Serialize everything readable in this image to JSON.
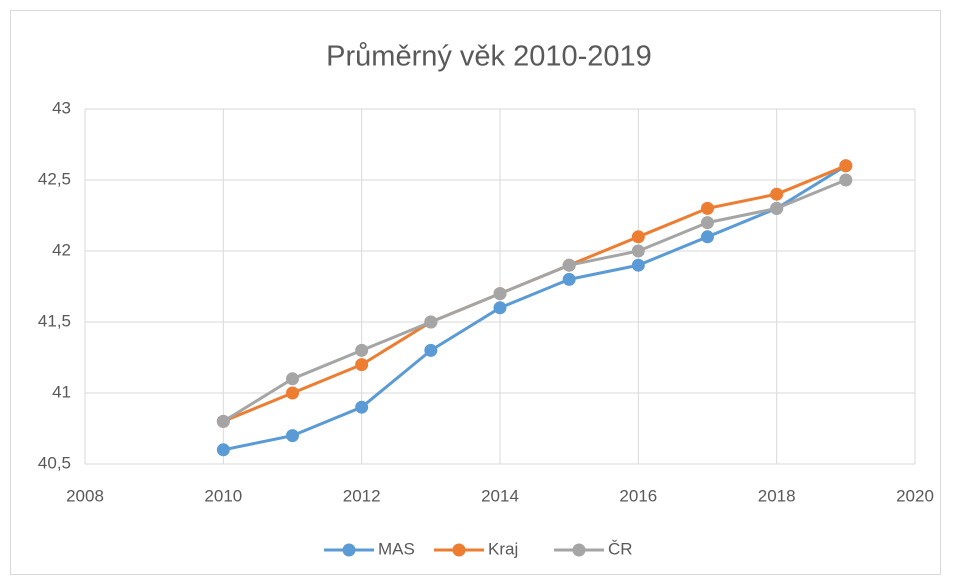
{
  "chart_data": {
    "type": "line",
    "title": "Průměrný věk 2010-2019",
    "x": [
      2010,
      2011,
      2012,
      2013,
      2014,
      2015,
      2016,
      2017,
      2018,
      2019
    ],
    "series": [
      {
        "name": "MAS",
        "color": "#5b9bd5",
        "values": [
          40.6,
          40.7,
          40.9,
          41.3,
          41.6,
          41.8,
          41.9,
          42.1,
          42.3,
          42.6
        ]
      },
      {
        "name": "Kraj",
        "color": "#ed7d31",
        "values": [
          40.8,
          41.0,
          41.2,
          41.5,
          41.7,
          41.9,
          42.1,
          42.3,
          42.4,
          42.6
        ]
      },
      {
        "name": "ČR",
        "color": "#a5a5a5",
        "values": [
          40.8,
          41.1,
          41.3,
          41.5,
          41.7,
          41.9,
          42.0,
          42.2,
          42.3,
          42.5
        ]
      }
    ],
    "xlim": [
      2008,
      2020
    ],
    "xticks": [
      2008,
      2010,
      2012,
      2014,
      2016,
      2018,
      2020
    ],
    "ylim": [
      40.5,
      43
    ],
    "yticks": [
      {
        "value": 40.5,
        "label": "40,5"
      },
      41,
      {
        "value": 41.5,
        "label": "41,5"
      },
      42,
      {
        "value": 42.5,
        "label": "42,5"
      },
      43
    ],
    "grid": true,
    "legend": "bottom"
  }
}
